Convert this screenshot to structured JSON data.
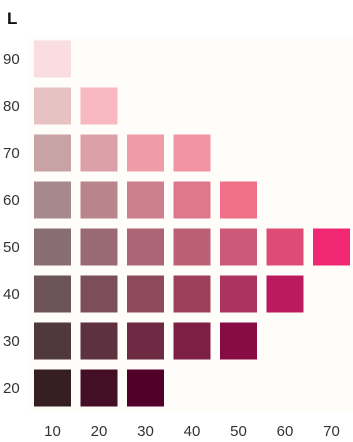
{
  "chart_data": {
    "type": "heatmap",
    "y_axis_title": "L",
    "x_ticks": [
      "10",
      "20",
      "30",
      "40",
      "50",
      "60",
      "70"
    ],
    "y_ticks": [
      "90",
      "80",
      "70",
      "60",
      "50",
      "40",
      "30",
      "20"
    ],
    "plot_background": "#fffdf9",
    "cells": [
      {
        "L": 90,
        "C": 10,
        "color": "#f9dde0"
      },
      {
        "L": 80,
        "C": 10,
        "color": "#e6c2c2"
      },
      {
        "L": 80,
        "C": 20,
        "color": "#f8b8c0"
      },
      {
        "L": 70,
        "C": 10,
        "color": "#c8a3a5"
      },
      {
        "L": 70,
        "C": 20,
        "color": "#dca0a8"
      },
      {
        "L": 70,
        "C": 30,
        "color": "#f09ca8"
      },
      {
        "L": 70,
        "C": 40,
        "color": "#f394a4"
      },
      {
        "L": 60,
        "C": 10,
        "color": "#a5898c"
      },
      {
        "L": 60,
        "C": 20,
        "color": "#ba848c"
      },
      {
        "L": 60,
        "C": 30,
        "color": "#cd7f8b"
      },
      {
        "L": 60,
        "C": 40,
        "color": "#df788a"
      },
      {
        "L": 60,
        "C": 50,
        "color": "#f0708a"
      },
      {
        "L": 50,
        "C": 10,
        "color": "#886e72"
      },
      {
        "L": 50,
        "C": 20,
        "color": "#9a6a74"
      },
      {
        "L": 50,
        "C": 30,
        "color": "#ab6574"
      },
      {
        "L": 50,
        "C": 40,
        "color": "#bb5f74"
      },
      {
        "L": 50,
        "C": 50,
        "color": "#cd5877"
      },
      {
        "L": 50,
        "C": 60,
        "color": "#de4c76"
      },
      {
        "L": 50,
        "C": 70,
        "color": "#f02874"
      },
      {
        "L": 40,
        "C": 10,
        "color": "#6c5458"
      },
      {
        "L": 40,
        "C": 20,
        "color": "#7c4e5a"
      },
      {
        "L": 40,
        "C": 30,
        "color": "#8c4a5a"
      },
      {
        "L": 40,
        "C": 40,
        "color": "#9c405c"
      },
      {
        "L": 40,
        "C": 50,
        "color": "#ac335d"
      },
      {
        "L": 40,
        "C": 60,
        "color": "#bc1a5e"
      },
      {
        "L": 30,
        "C": 10,
        "color": "#4f393d"
      },
      {
        "L": 30,
        "C": 20,
        "color": "#5e3140"
      },
      {
        "L": 30,
        "C": 30,
        "color": "#6d2a42"
      },
      {
        "L": 30,
        "C": 40,
        "color": "#7d1e44"
      },
      {
        "L": 30,
        "C": 50,
        "color": "#880c44"
      },
      {
        "L": 20,
        "C": 10,
        "color": "#361f24"
      },
      {
        "L": 20,
        "C": 20,
        "color": "#440e24"
      },
      {
        "L": 20,
        "C": 30,
        "color": "#500029"
      }
    ]
  }
}
